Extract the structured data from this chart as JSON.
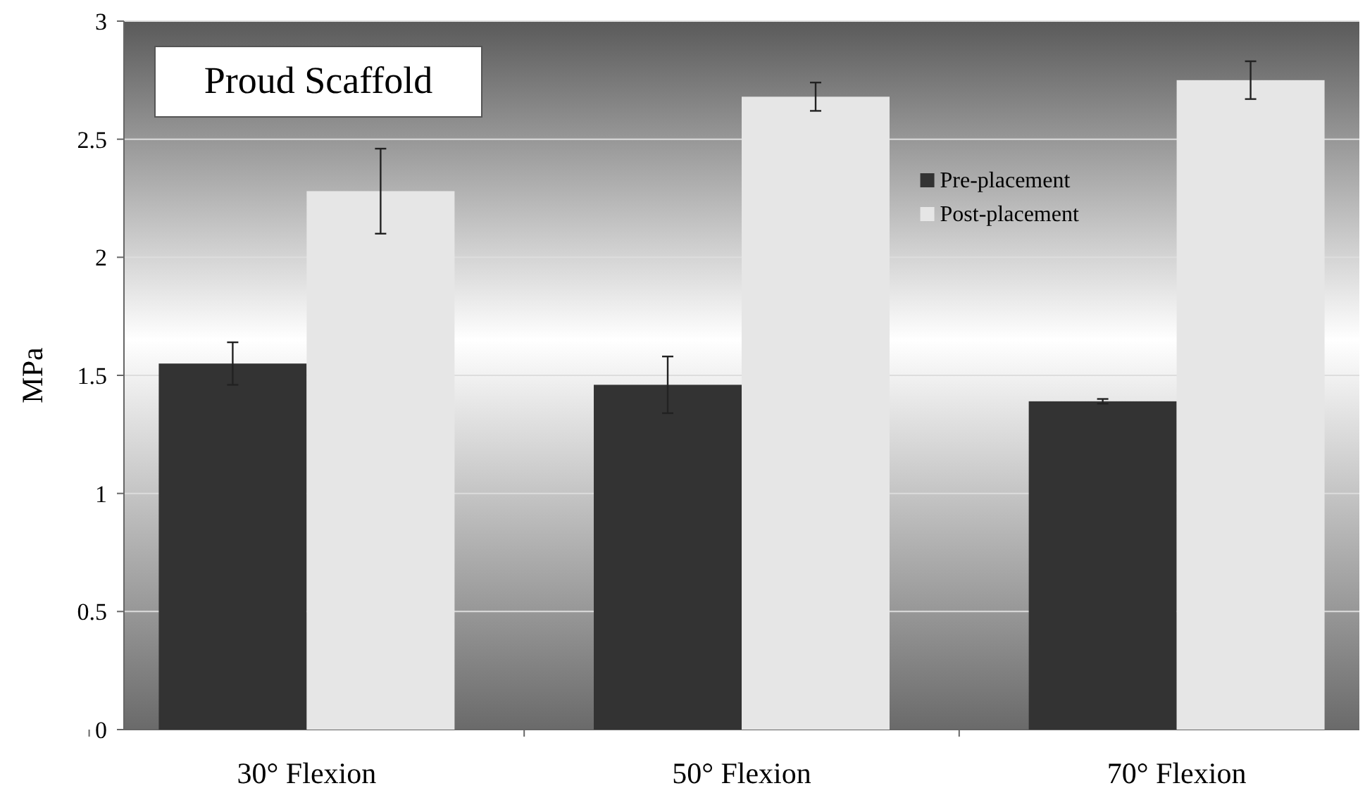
{
  "chart_data": {
    "type": "bar",
    "title": "Proud Scaffold",
    "ylabel": "MPa",
    "categories": [
      "30° Flexion",
      "50° Flexion",
      "70° Flexion"
    ],
    "series": [
      {
        "name": "Pre-placement",
        "color": "#333333",
        "values": [
          1.55,
          1.46,
          1.39
        ],
        "errors": [
          0.09,
          0.12,
          0.01
        ]
      },
      {
        "name": "Post-placement",
        "color": "#e6e6e6",
        "values": [
          2.28,
          2.68,
          2.75
        ],
        "errors": [
          0.18,
          0.06,
          0.08
        ]
      }
    ],
    "ylim": [
      0,
      3
    ],
    "yticks": [
      0,
      {
        "value": 0.5,
        "label": "0.5"
      },
      1,
      {
        "value": 1.5,
        "label": "1.5"
      },
      2,
      {
        "value": 2.5,
        "label": "2.5"
      },
      3
    ],
    "grid": "y",
    "legend": "top right"
  }
}
